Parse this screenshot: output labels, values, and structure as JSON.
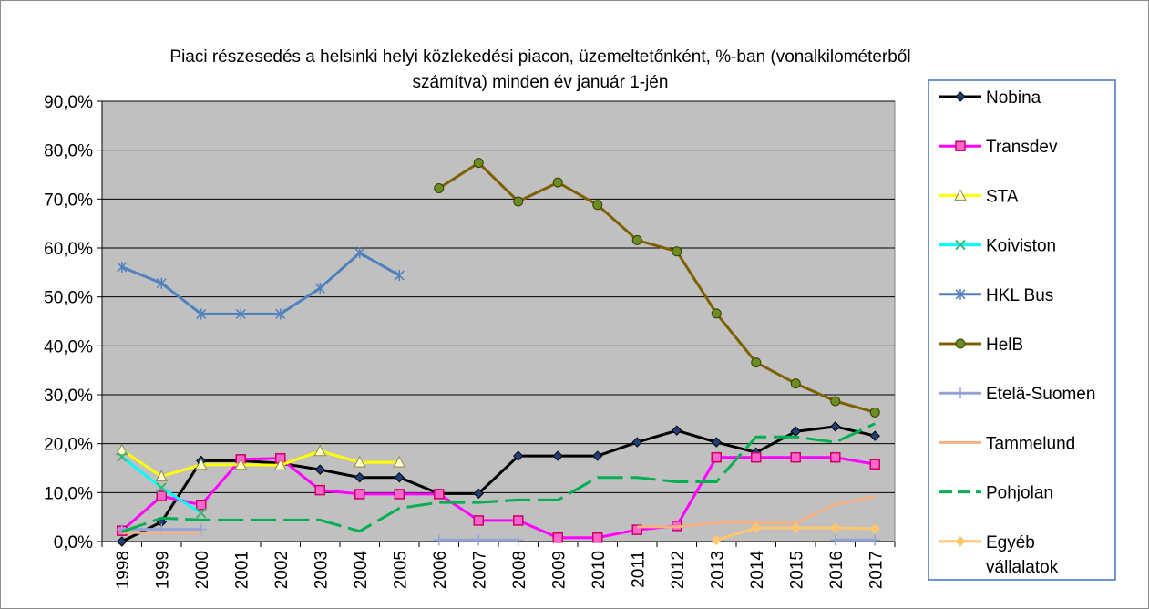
{
  "chart_data": {
    "type": "line",
    "title": "Piaci részesedés a helsinki helyi közlekedési piacon, üzemeltetőnként,  %-ban (vonalkilométerből számítva) minden év január 1-jén",
    "title_lines": [
      "Piaci részesedés a helsinki helyi közlekedési piacon, üzemeltetőnként,  %-ban (vonalkilométerből",
      "számítva) minden év január 1-jén"
    ],
    "xlabel": "",
    "ylabel": "",
    "x": [
      "1998",
      "1999",
      "2000",
      "2001",
      "2002",
      "2003",
      "2004",
      "2005",
      "2006",
      "2007",
      "2008",
      "2009",
      "2010",
      "2011",
      "2012",
      "2013",
      "2014",
      "2015",
      "2016",
      "2017"
    ],
    "ylim": [
      0,
      90
    ],
    "yticks": [
      0,
      10,
      20,
      30,
      40,
      50,
      60,
      70,
      80,
      90
    ],
    "ytick_labels": [
      "0,0%",
      "10,0%",
      "20,0%",
      "30,0%",
      "40,0%",
      "50,0%",
      "60,0%",
      "70,0%",
      "80,0%",
      "90,0%"
    ],
    "grid": true,
    "plot_background": "#c0c0c0",
    "legend_position": "right",
    "series": [
      {
        "name": "Nobina",
        "color": "#000000",
        "marker": "diamond",
        "dash": "solid",
        "values": [
          0,
          4,
          16.5,
          16.5,
          16,
          14.7,
          13.1,
          13.1,
          9.8,
          9.8,
          17.5,
          17.5,
          17.5,
          20.3,
          22.7,
          20.3,
          18.2,
          22.5,
          23.5,
          21.6
        ]
      },
      {
        "name": "Transdev",
        "color": "#ff00ff",
        "marker": "square",
        "dash": "solid",
        "values": [
          2.2,
          9.3,
          7.5,
          16.8,
          17,
          10.5,
          9.7,
          9.7,
          9.7,
          4.3,
          4.3,
          0.8,
          0.8,
          2.4,
          3.2,
          17.2,
          17.2,
          17.2,
          17.2,
          15.8
        ]
      },
      {
        "name": "STA",
        "color": "#ffff00",
        "marker": "triangle",
        "dash": "solid",
        "values": [
          18.7,
          13.3,
          15.7,
          15.7,
          15.6,
          18.5,
          16.2,
          16.2,
          null,
          null,
          null,
          null,
          null,
          null,
          null,
          null,
          null,
          null,
          null,
          null
        ]
      },
      {
        "name": "Koiviston",
        "color": "#00ffff",
        "marker": "x",
        "dash": "solid",
        "values": [
          17.3,
          11,
          5.8,
          null,
          null,
          null,
          null,
          null,
          null,
          null,
          null,
          null,
          null,
          null,
          null,
          null,
          null,
          null,
          null,
          null
        ]
      },
      {
        "name": "HKL Bus",
        "color": "#4f81bd",
        "marker": "star",
        "dash": "solid",
        "values": [
          56.1,
          52.8,
          46.5,
          46.5,
          46.5,
          51.8,
          59,
          54.4,
          null,
          null,
          null,
          null,
          null,
          null,
          null,
          null,
          null,
          null,
          null,
          null
        ]
      },
      {
        "name": "HelB",
        "color": "#7f6000",
        "marker": "circle",
        "dash": "solid",
        "values": [
          null,
          null,
          null,
          null,
          null,
          null,
          null,
          null,
          72.2,
          77.4,
          69.5,
          73.4,
          68.8,
          61.6,
          59.3,
          46.6,
          36.6,
          32.3,
          28.7,
          26.4
        ]
      },
      {
        "name": "Etelä-Suomen",
        "color": "#95a3d5",
        "marker": "plus",
        "dash": "solid",
        "values": [
          2.5,
          2.5,
          2.5,
          null,
          null,
          null,
          null,
          null,
          0.3,
          0.3,
          0.3,
          null,
          null,
          null,
          null,
          null,
          null,
          null,
          0.3,
          0.3
        ]
      },
      {
        "name": "Tammelund",
        "color": "#f4b183",
        "marker": "none",
        "dash": "solid",
        "values": [
          1.8,
          1.8,
          1.8,
          null,
          null,
          null,
          null,
          null,
          null,
          null,
          null,
          null,
          null,
          3,
          3,
          3.8,
          3.8,
          3.8,
          7.6,
          9.2
        ]
      },
      {
        "name": "Pohjolan",
        "color": "#00b050",
        "marker": "none",
        "dash": "long-dash",
        "values": [
          2,
          4.8,
          4.4,
          4.4,
          4.4,
          4.4,
          2.1,
          6.8,
          8,
          8,
          8.5,
          8.5,
          13.1,
          13.1,
          12.2,
          12.2,
          21.4,
          21.4,
          20.3,
          24.1
        ]
      },
      {
        "name": "Egyéb vállalatok",
        "name_lines": [
          "Egyéb",
          "vállalatok"
        ],
        "color": "#ffc66d",
        "marker": "diamond",
        "dash": "solid",
        "values": [
          null,
          null,
          null,
          null,
          null,
          null,
          null,
          null,
          null,
          null,
          null,
          null,
          null,
          null,
          null,
          0.3,
          2.8,
          2.8,
          2.8,
          2.6
        ]
      }
    ]
  }
}
